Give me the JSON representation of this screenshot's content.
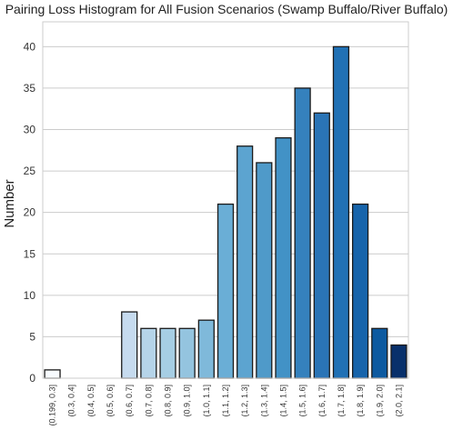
{
  "chart_data": {
    "type": "bar",
    "title": "Pairing Loss Histogram for All Fusion Scenarios (Swamp Buffalo/River Buffalo)",
    "xlabel": "",
    "ylabel": "Number",
    "ylim": [
      0,
      43
    ],
    "yticks": [
      0,
      5,
      10,
      15,
      20,
      25,
      30,
      35,
      40
    ],
    "grid": true,
    "legend": "none",
    "categories": [
      "(0.199, 0.3]",
      "(0.3, 0.4]",
      "(0.4, 0.5]",
      "(0.5, 0.6]",
      "(0.6, 0.7]",
      "(0.7, 0.8]",
      "(0.8, 0.9]",
      "(0.9, 1.0]",
      "(1.0, 1.1]",
      "(1.1, 1.2]",
      "(1.2, 1.3]",
      "(1.3, 1.4]",
      "(1.4, 1.5]",
      "(1.5, 1.6]",
      "(1.6, 1.7]",
      "(1.7, 1.8]",
      "(1.8, 1.9]",
      "(1.9, 2.0]",
      "(2.0, 2.1]"
    ],
    "values": [
      1,
      0,
      0,
      0,
      8,
      6,
      6,
      6,
      7,
      21,
      28,
      26,
      29,
      35,
      32,
      40,
      21,
      6,
      4
    ],
    "colors": [
      "#f7fbff",
      "#eaf3fb",
      "#deebf7",
      "#d3e4f3",
      "#c6dbef",
      "#b5d4e9",
      "#a6cee4",
      "#94c4df",
      "#7fb9da",
      "#6aaed6",
      "#5ca4d0",
      "#4f9ac9",
      "#4292c6",
      "#3581bd",
      "#2a74b6",
      "#2171b5",
      "#1764ab",
      "#0d5aa0",
      "#08306b"
    ]
  }
}
